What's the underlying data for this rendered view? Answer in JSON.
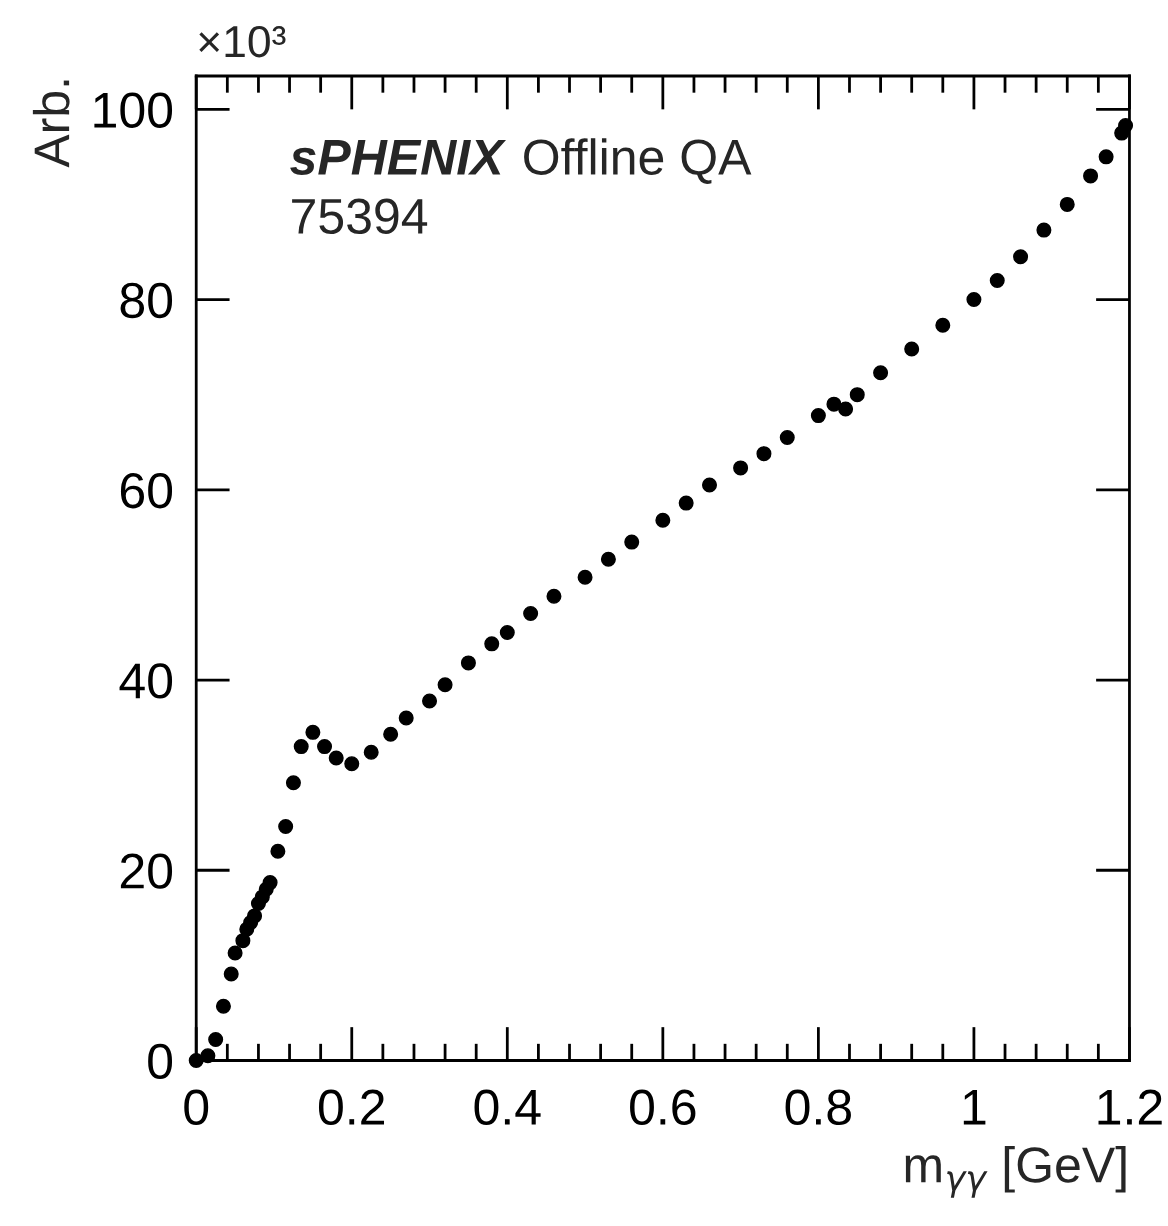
{
  "chart_data": {
    "type": "scatter",
    "xlabel": "m$_{γγ}$ [GeV]",
    "ylabel": "Arb.",
    "annotations": [
      "sPHENIX",
      "Offline QA",
      "75394",
      "×10³"
    ],
    "x": [
      0.0,
      0.015,
      0.025,
      0.035,
      0.045,
      0.05,
      0.06,
      0.065,
      0.07,
      0.075,
      0.08,
      0.085,
      0.09,
      0.095,
      0.105,
      0.115,
      0.125,
      0.135,
      0.15,
      0.165,
      0.18,
      0.2,
      0.225,
      0.25,
      0.27,
      0.3,
      0.32,
      0.35,
      0.38,
      0.4,
      0.43,
      0.46,
      0.5,
      0.53,
      0.56,
      0.6,
      0.63,
      0.66,
      0.7,
      0.73,
      0.76,
      0.8,
      0.82,
      0.835,
      0.85,
      0.88,
      0.92,
      0.96,
      1.0,
      1.03,
      1.06,
      1.09,
      1.12,
      1.15,
      1.17,
      1.19,
      1.195
    ],
    "series": [
      {
        "color": "#000000",
        "values": [
          0,
          0.5,
          2.2,
          5.7,
          9.1,
          11.3,
          12.6,
          13.8,
          14.5,
          15.2,
          16.5,
          17.2,
          18.0,
          18.7,
          22.0,
          24.6,
          29.2,
          33.0,
          34.5,
          33.0,
          31.8,
          31.2,
          32.4,
          34.3,
          36.0,
          37.8,
          39.5,
          41.8,
          43.8,
          45.0,
          47.0,
          48.8,
          50.8,
          52.7,
          54.5,
          56.8,
          58.6,
          60.5,
          62.3,
          63.8,
          65.5,
          67.8,
          69.0,
          68.5,
          70.0,
          72.3,
          74.8,
          77.3,
          80.0,
          82.0,
          84.5,
          87.3,
          90.0,
          93.0,
          95.0,
          97.5,
          98.3
        ]
      }
    ],
    "marker": "circle",
    "xlim": [
      0,
      1.2
    ],
    "xticks": [
      0,
      0.2,
      0.4,
      0.6,
      0.8,
      1,
      1.2
    ],
    "ylim": [
      0,
      103.5
    ],
    "yticks": [
      0,
      20,
      40,
      60,
      80,
      100
    ],
    "grid": false,
    "legend": false
  }
}
